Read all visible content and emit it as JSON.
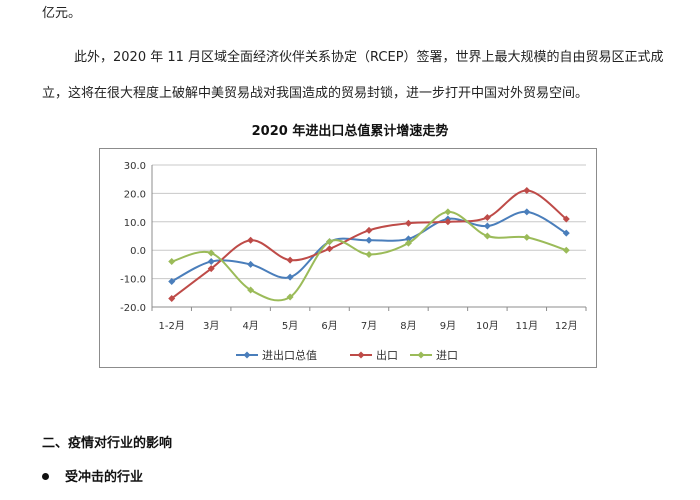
{
  "document": {
    "top_fragment": "亿元。",
    "paragraph_line1": "此外，2020 年 11 月区域全面经济伙伴关系协定（RCEP）签署，世界上最大规模的自由贸易区正式成",
    "paragraph_line2": "立，这将在很大程度上破解中美贸易战对我国造成的贸易封锁，进一步打开中国对外贸易空间。",
    "section_heading": "二、疫情对行业的影响",
    "bullet_item": "受冲击的行业"
  },
  "chart_data": {
    "type": "line",
    "title": "2020 年进出口总值累计增速走势",
    "categories": [
      "1-2月",
      "3月",
      "4月",
      "5月",
      "6月",
      "7月",
      "8月",
      "9月",
      "10月",
      "11月",
      "12月"
    ],
    "ylim": [
      -20,
      30
    ],
    "yticks": [
      30.0,
      20.0,
      10.0,
      0.0,
      -10.0,
      -20.0
    ],
    "ytick_labels": [
      "30.0",
      "20.0",
      "10.0",
      "0.0",
      "-10.0",
      "-20.0"
    ],
    "xlabel": "",
    "ylabel": "",
    "grid": true,
    "legend_position": "bottom",
    "series": [
      {
        "name": "进出口总值",
        "color": "#4A7EBB",
        "marker": "diamond",
        "values": [
          -11.0,
          -4.0,
          -5.0,
          -9.5,
          3.0,
          3.5,
          4.0,
          11.0,
          8.5,
          13.5,
          6.0
        ]
      },
      {
        "name": "出口",
        "color": "#BE4B48",
        "marker": "diamond",
        "values": [
          -17.0,
          -6.5,
          3.5,
          -3.5,
          0.5,
          7.0,
          9.5,
          10.0,
          11.5,
          21.0,
          11.0
        ]
      },
      {
        "name": "进口",
        "color": "#9BBB59",
        "marker": "diamond",
        "values": [
          -4.0,
          -1.0,
          -14.0,
          -16.5,
          3.0,
          -1.5,
          2.5,
          13.5,
          5.0,
          4.5,
          0.0
        ]
      }
    ]
  }
}
